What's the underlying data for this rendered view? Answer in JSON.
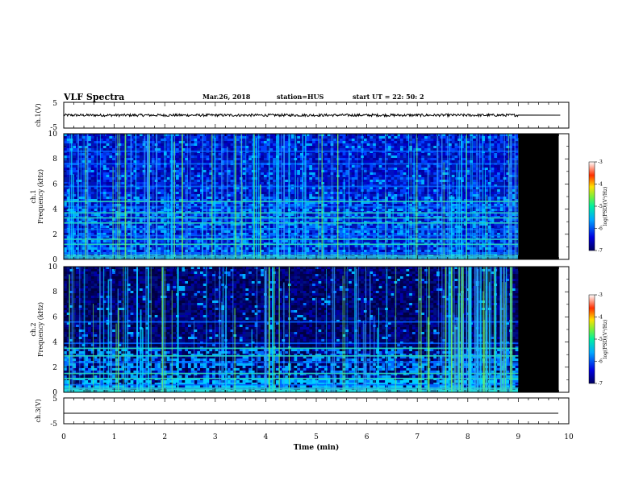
{
  "header": {
    "title": "VLF Spectra",
    "date": "Mar.26, 2018",
    "station": "station=HUS",
    "start": "start UT =  22: 50: 2"
  },
  "chart_data": [
    {
      "type": "line",
      "ylabel": "ch.1(V)",
      "xlim": [
        0,
        10
      ],
      "ylim": [
        -5,
        5
      ],
      "yticks": [
        "5",
        "-5"
      ],
      "data_end_min": 9.0,
      "signal": "noisy waveform centred near 0 V with amplitude about ±0.5 V",
      "x": [
        0,
        9
      ],
      "y": [
        0,
        0
      ]
    },
    {
      "type": "heatmap",
      "ylabel": "ch.1 Frequency (kHz)",
      "xlim": [
        0,
        10
      ],
      "ylim": [
        0,
        10
      ],
      "yticks": [
        "0",
        "2",
        "4",
        "6",
        "8",
        "10"
      ],
      "data_end_min": 9.0,
      "colorbar": {
        "label": "log(PSD)(V²/Hz)",
        "min": -7,
        "max": -3,
        "ticks": [
          "-3",
          "-4",
          "-5",
          "-6",
          "-7"
        ]
      },
      "band_lines_khz": [
        0.2,
        0.5,
        1.2,
        1.6,
        1.9,
        2.4,
        2.9,
        3.3,
        3.7,
        4.2,
        4.6,
        5.8,
        7.6,
        8.6
      ],
      "bright_band_khz": [
        1.2,
        1.6,
        2.9,
        3.3,
        3.7,
        4.6
      ]
    },
    {
      "type": "heatmap",
      "ylabel": "ch.2 Frequency (kHz)",
      "xlim": [
        0,
        10
      ],
      "ylim": [
        0,
        10
      ],
      "yticks": [
        "0",
        "2",
        "4",
        "6",
        "8",
        "10"
      ],
      "data_end_min": 9.0,
      "colorbar": {
        "label": "log(PSD)(V²/Hz)",
        "min": -7,
        "max": -3,
        "ticks": [
          "-3",
          "-4",
          "-5",
          "-6",
          "-7"
        ]
      },
      "band_lines_khz": [
        0.3,
        0.6,
        1.1,
        1.5,
        2.4,
        2.9,
        3.5,
        3.9,
        5.6
      ],
      "bright_band_khz": [
        1.1,
        1.5,
        2.9,
        3.5
      ]
    },
    {
      "type": "line",
      "ylabel": "ch.3(V)",
      "xlim": [
        0,
        10
      ],
      "ylim": [
        -5,
        5
      ],
      "yticks": [
        "5",
        "-5"
      ],
      "x": [
        0,
        10
      ],
      "y": [
        -2,
        -2
      ],
      "xlabel": "Time (min)",
      "xticks": [
        "0",
        "1",
        "2",
        "3",
        "4",
        "5",
        "6",
        "7",
        "8",
        "9",
        "10"
      ]
    }
  ],
  "colors": {
    "cmap": [
      "#000000",
      "#000060",
      "#0000c8",
      "#0064ff",
      "#00c8ff",
      "#00e8a0",
      "#50f050",
      "#f0f000",
      "#ff8000",
      "#ff0000",
      "#ffffff"
    ],
    "blank": "#000000"
  }
}
